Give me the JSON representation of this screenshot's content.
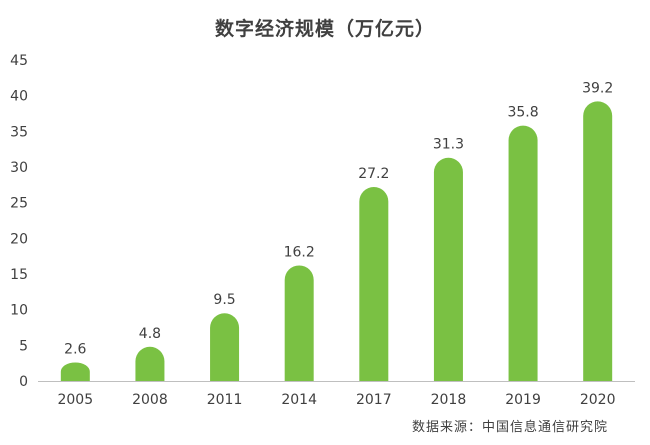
{
  "chart_data": {
    "type": "bar",
    "title": "数字经济规模（万亿元）",
    "categories": [
      "2005",
      "2008",
      "2011",
      "2014",
      "2017",
      "2018",
      "2019",
      "2020"
    ],
    "values": [
      2.6,
      4.8,
      9.5,
      16.2,
      27.2,
      31.3,
      35.8,
      39.2
    ],
    "data_labels": [
      "2.6",
      "4.8",
      "9.5",
      "16.2",
      "27.2",
      "31.3",
      "35.8",
      "39.2"
    ],
    "xlabel": "",
    "ylabel": "",
    "ylim": [
      0,
      45
    ],
    "yticks": [
      0,
      5,
      10,
      15,
      20,
      25,
      30,
      35,
      40,
      45
    ],
    "grid": false,
    "legend": "none",
    "bar_color": "#7ac143",
    "axis_color": "#bfbfbf",
    "text_color": "#404040"
  },
  "source": "数据来源：中国信息通信研究院"
}
